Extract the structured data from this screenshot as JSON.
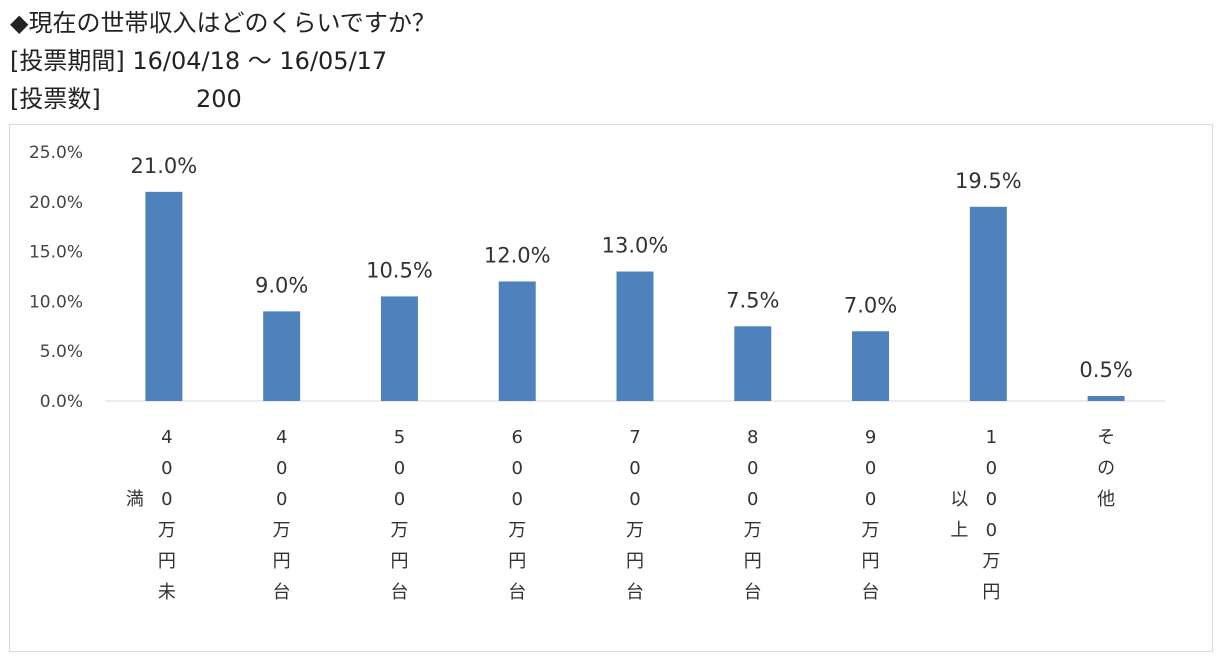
{
  "header": {
    "title": "◆現在の世帯収入はどのくらいですか？",
    "period": "[投票期間] 16/04/18 ～ 16/05/17",
    "votes_label": "[投票数]",
    "votes_value": "200"
  },
  "chart_data": {
    "type": "bar",
    "categories": [
      "400万円未満",
      "400万円台",
      "500万円台",
      "600万円台",
      "700万円台",
      "800万円台",
      "900万円台",
      "1000万円以上",
      "その他"
    ],
    "values": [
      21.0,
      9.0,
      10.5,
      12.0,
      13.0,
      7.5,
      7.0,
      19.5,
      0.5
    ],
    "value_labels": [
      "21.0%",
      "9.0%",
      "10.5%",
      "12.0%",
      "13.0%",
      "7.5%",
      "7.0%",
      "19.5%",
      "0.5%"
    ],
    "y_ticks": [
      "0.0%",
      "5.0%",
      "10.0%",
      "15.0%",
      "20.0%",
      "25.0%"
    ],
    "ylim": [
      0,
      25
    ],
    "unit": "%",
    "grid": false,
    "legend": "none",
    "bar_color": "#4f81bd"
  }
}
